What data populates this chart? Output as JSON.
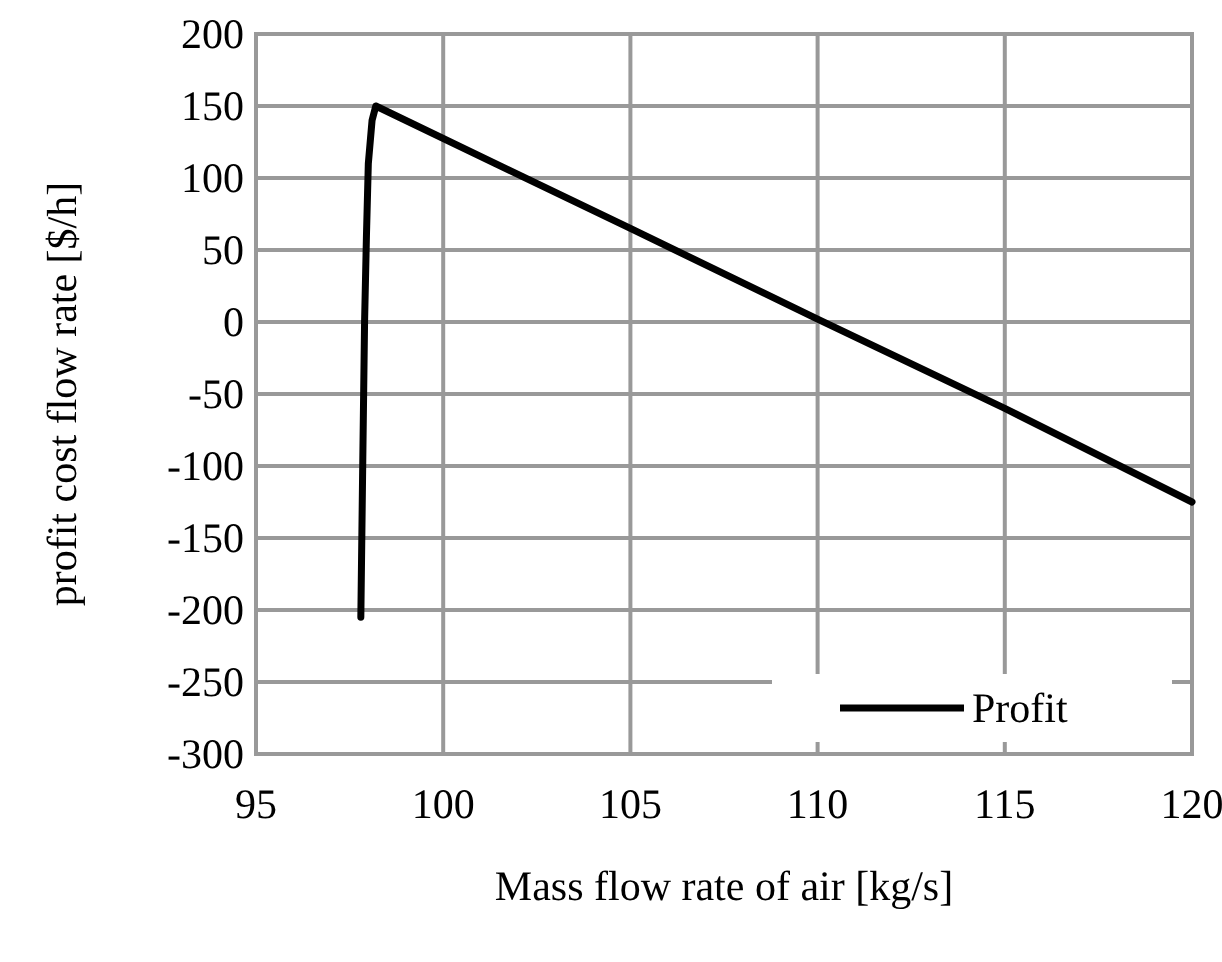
{
  "chart_data": {
    "type": "line",
    "xlabel": "Mass flow rate of air [kg/s]",
    "ylabel": "profit cost flow rate [$/h]",
    "series": [
      {
        "name": "Profit",
        "color": "#000000",
        "x": [
          97.8,
          97.85,
          97.9,
          97.95,
          98.0,
          98.1,
          98.2,
          105,
          110,
          115,
          120
        ],
        "values": [
          -205,
          -100,
          0,
          60,
          110,
          140,
          150,
          65,
          2,
          -60,
          -125
        ]
      }
    ],
    "xlim": [
      95,
      120
    ],
    "ylim": [
      -300,
      200
    ],
    "xticks": [
      95,
      100,
      105,
      110,
      115,
      120
    ],
    "yticks": [
      -300,
      -250,
      -200,
      -150,
      -100,
      -50,
      0,
      50,
      100,
      150,
      200
    ],
    "grid": true,
    "legend": "bottom right",
    "marker": "none",
    "line_style": "solid"
  }
}
